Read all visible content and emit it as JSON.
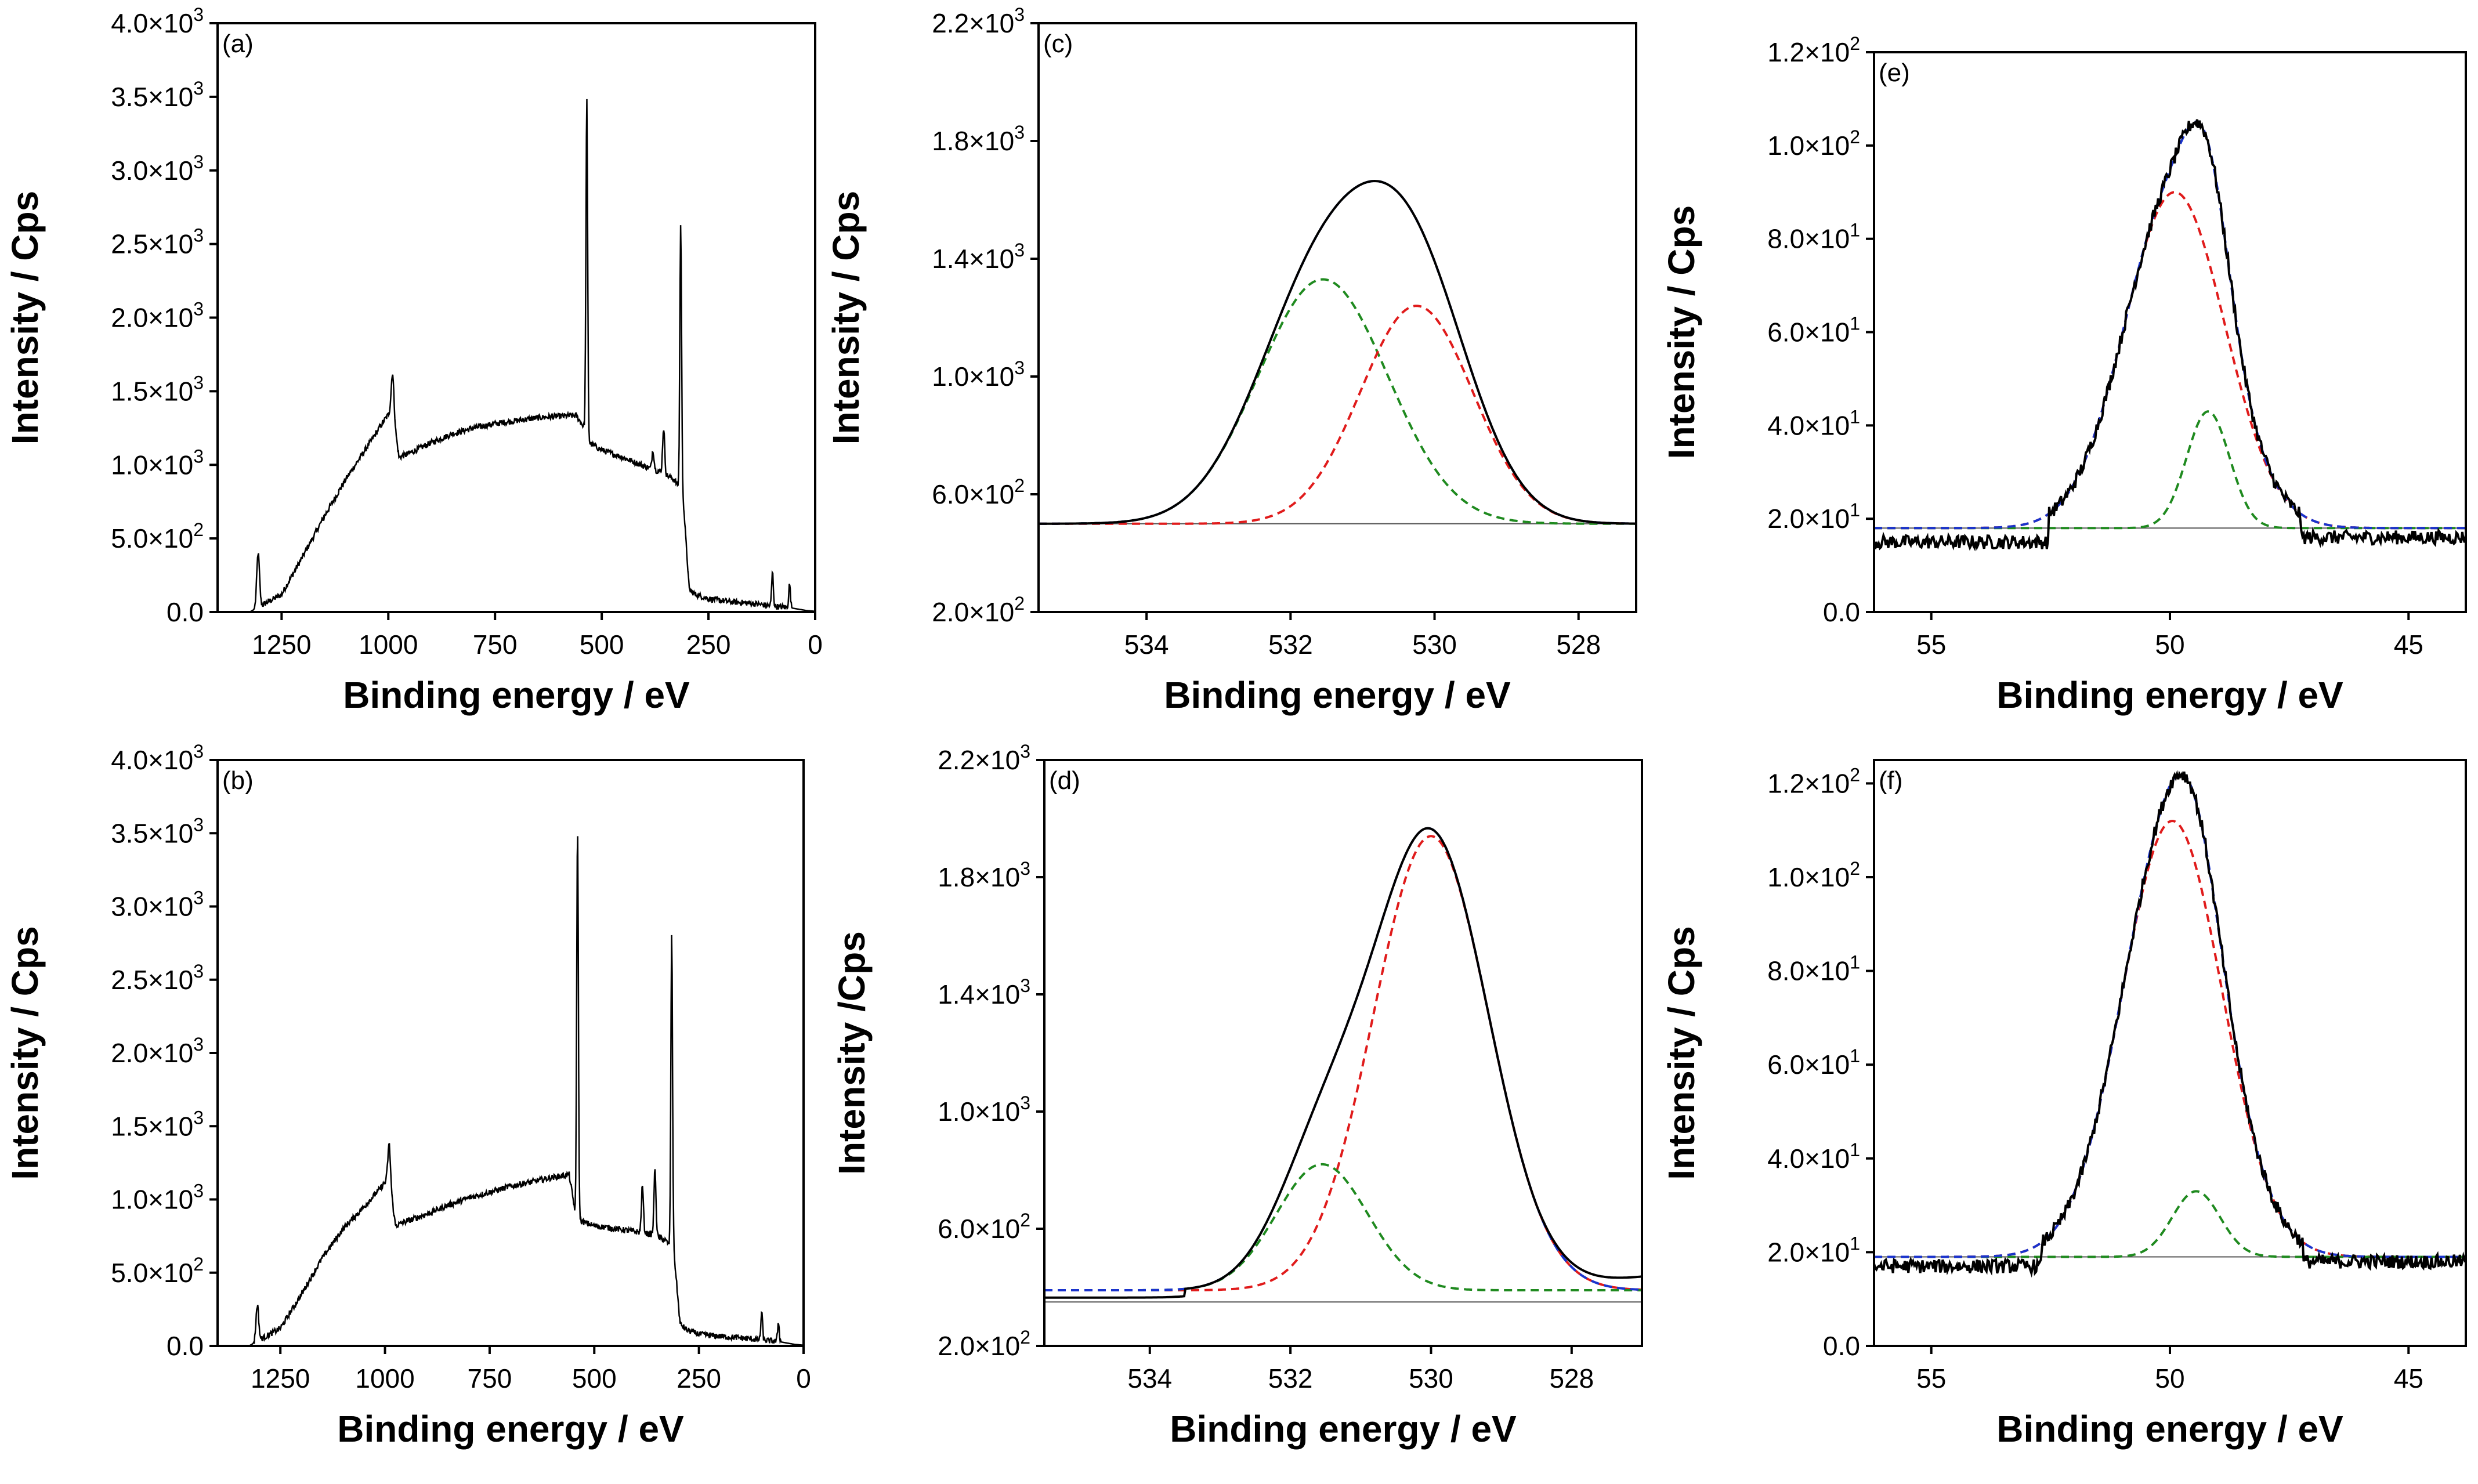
{
  "figure": {
    "colors": {
      "measured": "#000000",
      "envelope": "#1a33cc",
      "component_a": "#e01b1b",
      "component_b": "#1f8a1f",
      "baseline": "#555555"
    },
    "panels_order": [
      "a",
      "c",
      "e",
      "b",
      "d",
      "f"
    ]
  },
  "chart_data": [
    {
      "id": "a",
      "type": "line",
      "panel_label": "(a)",
      "xlabel": "Binding energy / eV",
      "ylabel": "Intensity / Cps",
      "xlim": [
        1400,
        0
      ],
      "ylim": [
        0,
        4000
      ],
      "xticks": [
        1250,
        1000,
        750,
        500,
        250,
        0
      ],
      "xtick_labels": [
        "1250",
        "1000",
        "750",
        "500",
        "250",
        "0"
      ],
      "yticks": [
        0,
        500,
        1000,
        1500,
        2000,
        2500,
        3000,
        3500,
        4000
      ],
      "ytick_labels": [
        {
          "m": "0.0"
        },
        {
          "m": "5.0×10",
          "e": "2"
        },
        {
          "m": "1.0×10",
          "e": "3"
        },
        {
          "m": "1.5×10",
          "e": "3"
        },
        {
          "m": "2.0×10",
          "e": "3"
        },
        {
          "m": "2.5×10",
          "e": "3"
        },
        {
          "m": "3.0×10",
          "e": "3"
        },
        {
          "m": "3.5×10",
          "e": "3"
        },
        {
          "m": "4.0×10",
          "e": "3"
        }
      ],
      "survey": {
        "base": [
          [
            1400,
            0
          ],
          [
            1325,
            0
          ],
          [
            1250,
            120
          ],
          [
            1200,
            380
          ],
          [
            1150,
            650
          ],
          [
            1100,
            900
          ],
          [
            1050,
            1120
          ],
          [
            1010,
            1300
          ],
          [
            990,
            1380
          ],
          [
            975,
            1050
          ],
          [
            950,
            1080
          ],
          [
            900,
            1150
          ],
          [
            850,
            1210
          ],
          [
            800,
            1250
          ],
          [
            750,
            1280
          ],
          [
            700,
            1300
          ],
          [
            650,
            1320
          ],
          [
            600,
            1330
          ],
          [
            560,
            1335
          ],
          [
            540,
            1250
          ],
          [
            530,
            1150
          ],
          [
            500,
            1100
          ],
          [
            450,
            1050
          ],
          [
            400,
            990
          ],
          [
            360,
            950
          ],
          [
            330,
            900
          ],
          [
            310,
            800
          ],
          [
            295,
            150
          ],
          [
            280,
            120
          ],
          [
            250,
            90
          ],
          [
            200,
            70
          ],
          [
            150,
            60
          ],
          [
            100,
            40
          ],
          [
            60,
            30
          ],
          [
            20,
            10
          ],
          [
            0,
            5
          ]
        ],
        "peaks": [
          [
            1305,
            400,
            8
          ],
          [
            990,
            1630,
            8
          ],
          [
            535,
            3480,
            5
          ],
          [
            380,
            1100,
            6
          ],
          [
            355,
            1250,
            6
          ],
          [
            315,
            2630,
            5
          ],
          [
            100,
            270,
            5
          ],
          [
            60,
            190,
            5
          ]
        ]
      }
    },
    {
      "id": "c",
      "type": "line",
      "panel_label": "(c)",
      "xlabel": "Binding energy / eV",
      "ylabel": "Intensity / Cps",
      "xlim": [
        535.5,
        527.2
      ],
      "ylim": [
        200,
        2200
      ],
      "xticks": [
        534,
        532,
        530,
        528
      ],
      "xtick_labels": [
        "534",
        "532",
        "530",
        "528"
      ],
      "yticks": [
        200,
        600,
        1000,
        1400,
        1800,
        2200
      ],
      "ytick_labels": [
        {
          "m": "2.0×10",
          "e": "2"
        },
        {
          "m": "6.0×10",
          "e": "2"
        },
        {
          "m": "1.0×10",
          "e": "3"
        },
        {
          "m": "1.4×10",
          "e": "3"
        },
        {
          "m": "1.8×10",
          "e": "3"
        },
        {
          "m": "2.2×10",
          "e": "3"
        }
      ],
      "baseline": 500,
      "components": [
        {
          "name": "green",
          "center": 531.55,
          "amplitude": 830,
          "sigma": 0.9
        },
        {
          "name": "red",
          "center": 530.25,
          "amplitude": 740,
          "sigma": 0.78
        }
      ]
    },
    {
      "id": "e",
      "type": "line",
      "panel_label": "(e)",
      "xlabel": "Binding energy / eV",
      "ylabel": "Intensity / Cps",
      "xlim": [
        56.2,
        43.8
      ],
      "ylim": [
        0,
        120
      ],
      "xticks": [
        55,
        50,
        45
      ],
      "xtick_labels": [
        "55",
        "50",
        "45"
      ],
      "yticks": [
        0,
        20,
        40,
        60,
        80,
        100,
        120
      ],
      "ytick_labels": [
        {
          "m": "0.0"
        },
        {
          "m": "2.0×10",
          "e": "1"
        },
        {
          "m": "4.0×10",
          "e": "1"
        },
        {
          "m": "6.0×10",
          "e": "1"
        },
        {
          "m": "8.0×10",
          "e": "1"
        },
        {
          "m": "1.0×10",
          "e": "2"
        },
        {
          "m": "1.2×10",
          "e": "2"
        }
      ],
      "baseline": 18,
      "components": [
        {
          "name": "red",
          "center": 49.9,
          "amplitude": 72,
          "sigma": 1.05
        },
        {
          "name": "green",
          "center": 49.2,
          "amplitude": 25,
          "sigma": 0.45
        }
      ],
      "noise_left": 15,
      "noise_right": 16
    },
    {
      "id": "b",
      "type": "line",
      "panel_label": "(b)",
      "xlabel": "Binding energy / eV",
      "ylabel": "Intensity / Cps",
      "xlim": [
        1400,
        0
      ],
      "ylim": [
        0,
        4000
      ],
      "xticks": [
        1250,
        1000,
        750,
        500,
        250,
        0
      ],
      "xtick_labels": [
        "1250",
        "1000",
        "750",
        "500",
        "250",
        "0"
      ],
      "yticks": [
        0,
        500,
        1000,
        1500,
        2000,
        2500,
        3000,
        3500,
        4000
      ],
      "ytick_labels": [
        {
          "m": "0.0"
        },
        {
          "m": "5.0×10",
          "e": "2"
        },
        {
          "m": "1.0×10",
          "e": "3"
        },
        {
          "m": "1.5×10",
          "e": "3"
        },
        {
          "m": "2.0×10",
          "e": "3"
        },
        {
          "m": "2.5×10",
          "e": "3"
        },
        {
          "m": "3.0×10",
          "e": "3"
        },
        {
          "m": "3.5×10",
          "e": "3"
        },
        {
          "m": "4.0×10",
          "e": "3"
        }
      ],
      "survey": {
        "base": [
          [
            1400,
            0
          ],
          [
            1325,
            0
          ],
          [
            1250,
            120
          ],
          [
            1200,
            350
          ],
          [
            1150,
            600
          ],
          [
            1100,
            800
          ],
          [
            1050,
            950
          ],
          [
            1010,
            1080
          ],
          [
            990,
            1150
          ],
          [
            975,
            820
          ],
          [
            950,
            850
          ],
          [
            900,
            900
          ],
          [
            850,
            960
          ],
          [
            800,
            1010
          ],
          [
            750,
            1050
          ],
          [
            700,
            1090
          ],
          [
            650,
            1120
          ],
          [
            600,
            1150
          ],
          [
            560,
            1170
          ],
          [
            545,
            900
          ],
          [
            530,
            850
          ],
          [
            500,
            820
          ],
          [
            450,
            800
          ],
          [
            400,
            780
          ],
          [
            360,
            760
          ],
          [
            330,
            720
          ],
          [
            310,
            650
          ],
          [
            295,
            150
          ],
          [
            280,
            110
          ],
          [
            250,
            80
          ],
          [
            200,
            65
          ],
          [
            150,
            55
          ],
          [
            100,
            40
          ],
          [
            60,
            30
          ],
          [
            20,
            10
          ],
          [
            0,
            5
          ]
        ],
        "peaks": [
          [
            1305,
            280,
            8
          ],
          [
            990,
            1380,
            8
          ],
          [
            540,
            3550,
            5
          ],
          [
            385,
            1090,
            6
          ],
          [
            355,
            1200,
            6
          ],
          [
            315,
            2800,
            5
          ],
          [
            100,
            230,
            5
          ],
          [
            60,
            160,
            5
          ]
        ]
      }
    },
    {
      "id": "d",
      "type": "line",
      "panel_label": "(d)",
      "xlabel": "Binding energy / eV",
      "ylabel": "Intensity /Cps",
      "xlim": [
        535.5,
        527.0
      ],
      "ylim": [
        200,
        2200
      ],
      "xticks": [
        534,
        532,
        530,
        528
      ],
      "xtick_labels": [
        "534",
        "532",
        "530",
        "528"
      ],
      "yticks": [
        200,
        600,
        1000,
        1400,
        1800,
        2200
      ],
      "ytick_labels": [
        {
          "m": "2.0×10",
          "e": "2"
        },
        {
          "m": "6.0×10",
          "e": "2"
        },
        {
          "m": "1.0×10",
          "e": "3"
        },
        {
          "m": "1.4×10",
          "e": "3"
        },
        {
          "m": "1.8×10",
          "e": "3"
        },
        {
          "m": "2.2×10",
          "e": "3"
        }
      ],
      "baseline": 390,
      "components": [
        {
          "name": "red",
          "center": 530.0,
          "amplitude": 1550,
          "sigma": 0.82
        },
        {
          "name": "green",
          "center": 531.55,
          "amplitude": 430,
          "sigma": 0.65
        }
      ]
    },
    {
      "id": "f",
      "type": "line",
      "panel_label": "(f)",
      "xlabel": "Binding energy / eV",
      "ylabel": "Intensity / Cps",
      "xlim": [
        56.2,
        43.8
      ],
      "ylim": [
        0,
        125
      ],
      "xticks": [
        55,
        50,
        45
      ],
      "xtick_labels": [
        "55",
        "50",
        "45"
      ],
      "yticks": [
        0,
        20,
        40,
        60,
        80,
        100,
        120
      ],
      "ytick_labels": [
        {
          "m": "0.0"
        },
        {
          "m": "2.0×10",
          "e": "1"
        },
        {
          "m": "4.0×10",
          "e": "1"
        },
        {
          "m": "6.0×10",
          "e": "1"
        },
        {
          "m": "8.0×10",
          "e": "1"
        },
        {
          "m": "1.0×10",
          "e": "2"
        },
        {
          "m": "1.2×10",
          "e": "2"
        }
      ],
      "baseline": 19,
      "components": [
        {
          "name": "red",
          "center": 49.95,
          "amplitude": 93,
          "sigma": 1.05
        },
        {
          "name": "green",
          "center": 49.45,
          "amplitude": 14,
          "sigma": 0.5
        }
      ],
      "noise_left": 17,
      "noise_right": 18
    }
  ]
}
